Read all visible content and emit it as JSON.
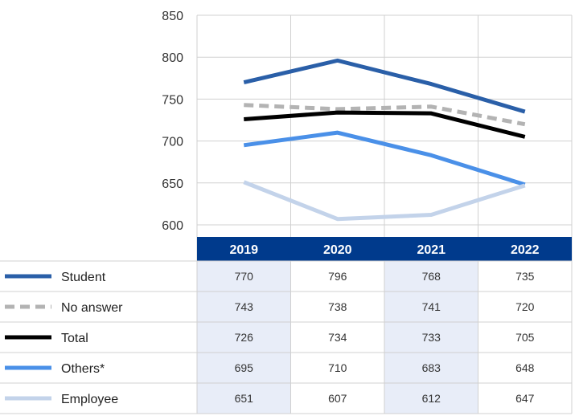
{
  "chart_data": {
    "type": "line",
    "categories": [
      "2019",
      "2020",
      "2021",
      "2022"
    ],
    "ylim": [
      600,
      850
    ],
    "yticks": [
      600,
      650,
      700,
      750,
      800,
      850
    ],
    "grid": true,
    "series": [
      {
        "name": "Student",
        "values": [
          770,
          796,
          768,
          735
        ],
        "color": "#2a5fa8",
        "dashed": false
      },
      {
        "name": "No answer",
        "values": [
          743,
          738,
          741,
          720
        ],
        "color": "#b3b3b3",
        "dashed": true
      },
      {
        "name": "Total",
        "values": [
          726,
          734,
          733,
          705
        ],
        "color": "#000000",
        "dashed": false
      },
      {
        "name": "Others*",
        "values": [
          695,
          710,
          683,
          648
        ],
        "color": "#4a90e8",
        "dashed": false
      },
      {
        "name": "Employee",
        "values": [
          651,
          607,
          612,
          647
        ],
        "color": "#c3d3ea",
        "dashed": false
      }
    ],
    "header_color": "#003a8c",
    "shade_color": "#e8edf8"
  }
}
